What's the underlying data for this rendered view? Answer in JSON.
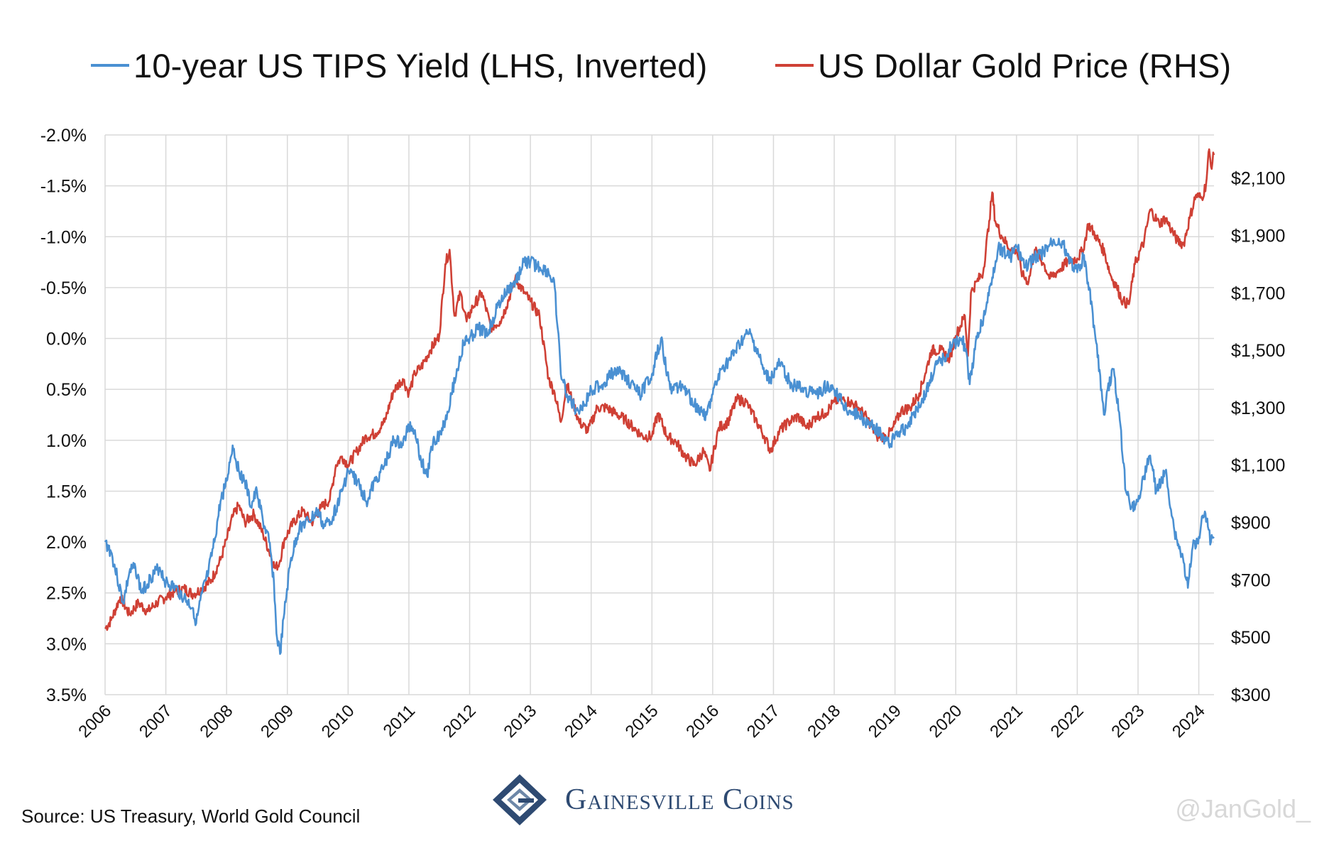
{
  "colors": {
    "tips": "#4a90d2",
    "gold": "#cf4035",
    "grid": "#d9d9d9",
    "text": "#111111"
  },
  "legend": [
    {
      "label": "10-year US TIPS Yield (LHS, Inverted)",
      "color": "#4a90d2"
    },
    {
      "label": "US Dollar Gold Price (RHS)",
      "color": "#cf4035"
    }
  ],
  "footer": {
    "source": "Source: US Treasury, World Gold Council",
    "brand": "Gainesville Coins",
    "brand_icon": "gainesville-coins-logo",
    "watermark": "@JanGold_"
  },
  "chart_data": {
    "type": "line",
    "title": "",
    "grid": true,
    "legend_position": "top",
    "x_ticks": [
      "2006",
      "2007",
      "2008",
      "2009",
      "2010",
      "2011",
      "2012",
      "2013",
      "2014",
      "2015",
      "2016",
      "2017",
      "2018",
      "2019",
      "2020",
      "2021",
      "2022",
      "2023",
      "2024"
    ],
    "xlim": [
      2006.0,
      2024.25
    ],
    "y_left": {
      "ticks": [
        "-2.0%",
        "-1.5%",
        "-1.0%",
        "-0.5%",
        "0.0%",
        "0.5%",
        "1.0%",
        "1.5%",
        "2.0%",
        "2.5%",
        "3.0%",
        "3.5%"
      ],
      "range": [
        -2.0,
        3.5
      ],
      "inverted": true,
      "unit": "%"
    },
    "y_right": {
      "ticks": [
        "$2,100",
        "$1,900",
        "$1,700",
        "$1,500",
        "$1,300",
        "$1,100",
        "$900",
        "$700",
        "$500",
        "$300"
      ],
      "range": [
        300,
        2250
      ],
      "unit": "$"
    },
    "series": [
      {
        "name": "10-year US TIPS Yield (LHS, Inverted)",
        "axis": "left",
        "x": [
          2006.0,
          2006.1,
          2006.2,
          2006.3,
          2006.4,
          2006.5,
          2006.6,
          2006.75,
          2006.9,
          2007.0,
          2007.15,
          2007.3,
          2007.45,
          2007.5,
          2007.6,
          2007.7,
          2007.8,
          2007.9,
          2008.0,
          2008.1,
          2008.2,
          2008.3,
          2008.4,
          2008.5,
          2008.6,
          2008.7,
          2008.78,
          2008.82,
          2008.88,
          2008.95,
          2009.05,
          2009.2,
          2009.35,
          2009.5,
          2009.6,
          2009.75,
          2009.9,
          2010.0,
          2010.15,
          2010.3,
          2010.45,
          2010.6,
          2010.75,
          2010.9,
          2011.0,
          2011.1,
          2011.2,
          2011.3,
          2011.4,
          2011.5,
          2011.6,
          2011.7,
          2011.8,
          2011.9,
          2012.0,
          2012.15,
          2012.3,
          2012.45,
          2012.6,
          2012.75,
          2012.9,
          2013.0,
          2013.15,
          2013.3,
          2013.4,
          2013.45,
          2013.5,
          2013.6,
          2013.75,
          2013.9,
          2014.0,
          2014.2,
          2014.4,
          2014.6,
          2014.8,
          2015.0,
          2015.15,
          2015.3,
          2015.5,
          2015.7,
          2015.9,
          2016.0,
          2016.15,
          2016.3,
          2016.5,
          2016.6,
          2016.75,
          2016.85,
          2016.95,
          2017.1,
          2017.3,
          2017.5,
          2017.7,
          2017.9,
          2018.0,
          2018.2,
          2018.4,
          2018.6,
          2018.8,
          2018.9,
          2019.0,
          2019.15,
          2019.3,
          2019.5,
          2019.65,
          2019.8,
          2019.95,
          2020.1,
          2020.18,
          2020.2,
          2020.23,
          2020.35,
          2020.5,
          2020.6,
          2020.7,
          2020.9,
          2021.0,
          2021.15,
          2021.3,
          2021.45,
          2021.6,
          2021.75,
          2021.9,
          2022.0,
          2022.1,
          2022.2,
          2022.3,
          2022.4,
          2022.45,
          2022.5,
          2022.6,
          2022.7,
          2022.8,
          2022.9,
          2023.0,
          2023.1,
          2023.2,
          2023.3,
          2023.45,
          2023.6,
          2023.75,
          2023.82,
          2023.9,
          2024.0,
          2024.05,
          2024.1,
          2024.15,
          2024.2,
          2024.25
        ],
        "y": [
          2.0,
          2.1,
          2.35,
          2.6,
          2.3,
          2.25,
          2.5,
          2.35,
          2.25,
          2.4,
          2.45,
          2.55,
          2.65,
          2.8,
          2.5,
          2.3,
          2.0,
          1.6,
          1.4,
          1.05,
          1.3,
          1.4,
          1.65,
          1.5,
          1.8,
          2.0,
          2.4,
          2.9,
          3.1,
          2.7,
          2.2,
          1.85,
          1.8,
          1.7,
          1.85,
          1.75,
          1.5,
          1.3,
          1.4,
          1.6,
          1.4,
          1.25,
          1.0,
          1.05,
          0.85,
          0.9,
          1.2,
          1.35,
          1.0,
          0.95,
          0.8,
          0.55,
          0.3,
          0.05,
          0.0,
          -0.1,
          -0.05,
          -0.3,
          -0.45,
          -0.55,
          -0.75,
          -0.75,
          -0.7,
          -0.65,
          -0.5,
          -0.1,
          0.35,
          0.55,
          0.7,
          0.65,
          0.5,
          0.45,
          0.3,
          0.4,
          0.55,
          0.35,
          0.0,
          0.5,
          0.45,
          0.65,
          0.75,
          0.55,
          0.3,
          0.2,
          0.0,
          -0.05,
          0.15,
          0.35,
          0.4,
          0.25,
          0.45,
          0.5,
          0.55,
          0.45,
          0.5,
          0.7,
          0.75,
          0.85,
          0.95,
          1.05,
          0.95,
          0.9,
          0.75,
          0.55,
          0.3,
          0.2,
          0.05,
          0.0,
          0.15,
          0.3,
          0.45,
          0.0,
          -0.3,
          -0.6,
          -0.9,
          -0.8,
          -0.9,
          -0.7,
          -0.8,
          -0.85,
          -0.95,
          -0.95,
          -0.75,
          -0.65,
          -0.8,
          -0.5,
          0.0,
          0.5,
          0.75,
          0.5,
          0.3,
          0.8,
          1.5,
          1.65,
          1.6,
          1.35,
          1.15,
          1.5,
          1.3,
          1.9,
          2.2,
          2.45,
          2.05,
          1.95,
          1.75,
          1.7,
          1.85,
          2.0,
          1.95
        ]
      },
      {
        "name": "US Dollar Gold Price (RHS)",
        "axis": "right",
        "x": [
          2006.0,
          2006.1,
          2006.25,
          2006.4,
          2006.55,
          2006.7,
          2006.85,
          2007.0,
          2007.15,
          2007.3,
          2007.45,
          2007.6,
          2007.75,
          2007.9,
          2008.0,
          2008.1,
          2008.2,
          2008.3,
          2008.45,
          2008.6,
          2008.7,
          2008.8,
          2008.87,
          2008.95,
          2009.1,
          2009.25,
          2009.4,
          2009.55,
          2009.7,
          2009.8,
          2009.9,
          2010.0,
          2010.15,
          2010.3,
          2010.45,
          2010.6,
          2010.75,
          2010.9,
          2011.0,
          2011.1,
          2011.2,
          2011.35,
          2011.5,
          2011.6,
          2011.67,
          2011.75,
          2011.85,
          2011.95,
          2012.05,
          2012.2,
          2012.35,
          2012.5,
          2012.6,
          2012.75,
          2012.9,
          2013.0,
          2013.15,
          2013.3,
          2013.4,
          2013.5,
          2013.6,
          2013.7,
          2013.8,
          2013.95,
          2014.1,
          2014.25,
          2014.4,
          2014.55,
          2014.7,
          2014.85,
          2015.0,
          2015.1,
          2015.25,
          2015.4,
          2015.55,
          2015.7,
          2015.85,
          2015.95,
          2016.1,
          2016.25,
          2016.4,
          2016.55,
          2016.6,
          2016.7,
          2016.85,
          2016.95,
          2017.1,
          2017.25,
          2017.4,
          2017.55,
          2017.7,
          2017.85,
          2018.0,
          2018.1,
          2018.25,
          2018.4,
          2018.55,
          2018.7,
          2018.85,
          2018.95,
          2019.1,
          2019.25,
          2019.4,
          2019.5,
          2019.6,
          2019.75,
          2019.9,
          2020.0,
          2020.15,
          2020.2,
          2020.25,
          2020.35,
          2020.45,
          2020.55,
          2020.6,
          2020.65,
          2020.75,
          2020.9,
          2021.0,
          2021.1,
          2021.2,
          2021.3,
          2021.45,
          2021.55,
          2021.7,
          2021.85,
          2022.0,
          2022.1,
          2022.18,
          2022.3,
          2022.45,
          2022.55,
          2022.65,
          2022.75,
          2022.85,
          2022.95,
          2023.1,
          2023.2,
          2023.35,
          2023.45,
          2023.55,
          2023.65,
          2023.75,
          2023.85,
          2023.95,
          2024.05,
          2024.12,
          2024.17,
          2024.2,
          2024.25
        ],
        "y": [
          530,
          560,
          640,
          580,
          620,
          590,
          620,
          640,
          660,
          670,
          650,
          670,
          700,
          770,
          840,
          920,
          960,
          900,
          930,
          860,
          800,
          740,
          760,
          840,
          900,
          940,
          900,
          950,
          980,
          1100,
          1130,
          1100,
          1150,
          1200,
          1210,
          1250,
          1360,
          1400,
          1350,
          1420,
          1440,
          1500,
          1550,
          1800,
          1850,
          1620,
          1700,
          1600,
          1650,
          1700,
          1580,
          1600,
          1650,
          1750,
          1700,
          1670,
          1620,
          1400,
          1350,
          1250,
          1380,
          1320,
          1250,
          1220,
          1300,
          1300,
          1280,
          1260,
          1230,
          1200,
          1200,
          1280,
          1200,
          1180,
          1130,
          1100,
          1150,
          1080,
          1230,
          1250,
          1330,
          1320,
          1300,
          1260,
          1200,
          1150,
          1220,
          1250,
          1270,
          1230,
          1270,
          1280,
          1320,
          1330,
          1320,
          1300,
          1260,
          1200,
          1200,
          1220,
          1290,
          1300,
          1350,
          1420,
          1500,
          1500,
          1470,
          1550,
          1620,
          1480,
          1700,
          1740,
          1770,
          1950,
          2050,
          1950,
          1900,
          1850,
          1850,
          1760,
          1740,
          1850,
          1800,
          1750,
          1780,
          1810,
          1820,
          1850,
          1940,
          1900,
          1840,
          1760,
          1720,
          1670,
          1660,
          1800,
          1880,
          1990,
          1940,
          1960,
          1920,
          1880,
          1870,
          1960,
          2040,
          2030,
          2080,
          2200,
          2140,
          2180
        ]
      }
    ]
  }
}
